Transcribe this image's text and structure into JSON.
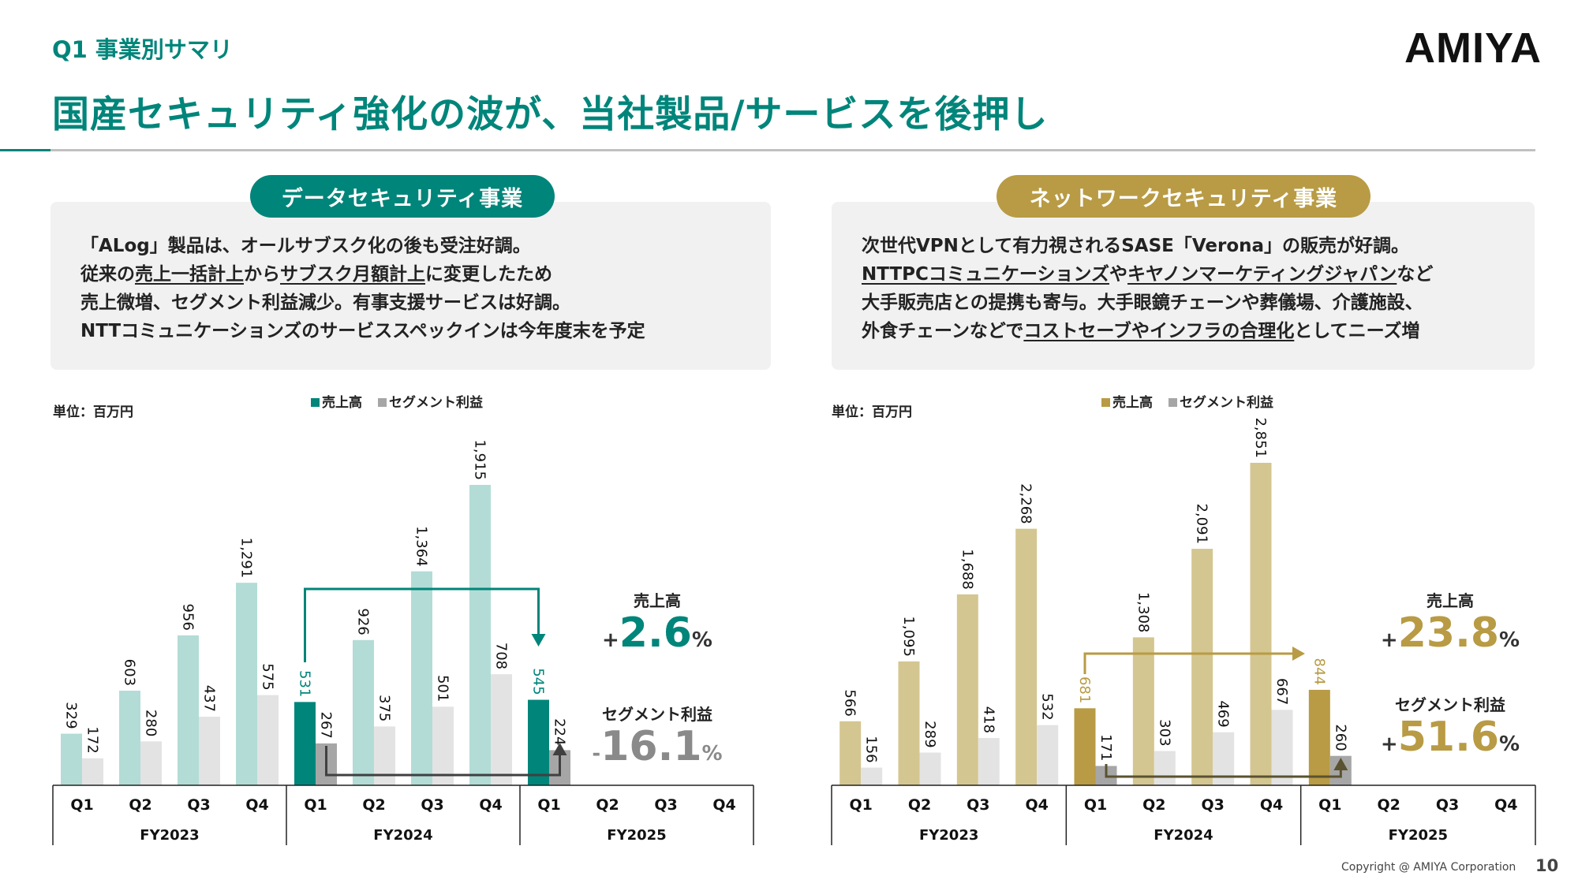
{
  "header": {
    "subtitle": "Q1 事業別サマリ",
    "title": "国産セキュリティ強化の波が、当社製品/サービスを後押し",
    "logo": "AMIYA"
  },
  "colors": {
    "teal": "#00857a",
    "teal_light": "#b3dcd6",
    "gold": "#b89b44",
    "gold_light": "#d4c690",
    "profit_light": "#e3e3e3",
    "profit_dark": "#a6a6a6",
    "profit_arrow_left": "#404040",
    "profit_arrow_right": "#5a5230"
  },
  "segments": [
    {
      "pill": "データセキュリティ事業",
      "lines": [
        [
          {
            "t": "「ALog」製品は、オールサブスク化の後も受注好調。",
            "u": false
          }
        ],
        [
          {
            "t": "従来の",
            "u": false
          },
          {
            "t": "売上一括計上",
            "u": true
          },
          {
            "t": "から",
            "u": false
          },
          {
            "t": "サブスク月額計上",
            "u": true
          },
          {
            "t": "に変更したため",
            "u": false
          }
        ],
        [
          {
            "t": "売上微増、セグメント利益減少。有事支援サービスは好調。",
            "u": false
          }
        ],
        [
          {
            "t": "NTTコミュニケーションズのサービススペックインは今年度末を予定",
            "u": false
          }
        ]
      ],
      "unit": "単位：百万円",
      "stats": {
        "sales_label": "売上高",
        "sales_sign": "+",
        "sales_value": "2.6",
        "sales_pct": "%",
        "profit_label": "セグメント利益",
        "profit_sign": "-",
        "profit_value": "16.1",
        "profit_pct": "%"
      }
    },
    {
      "pill": "ネットワークセキュリティ事業",
      "lines": [
        [
          {
            "t": "次世代VPNとして有力視されるSASE「Verona」の販売が好調。",
            "u": false
          }
        ],
        [
          {
            "t": "NTTPCコミュニケーションズ",
            "u": true
          },
          {
            "t": "や",
            "u": false
          },
          {
            "t": "キヤノンマーケティングジャパン",
            "u": true
          },
          {
            "t": "など",
            "u": false
          }
        ],
        [
          {
            "t": "大手販売店との提携も寄与。大手眼鏡チェーンや葬儀場、介護施設、",
            "u": false
          }
        ],
        [
          {
            "t": "外食チェーンなどで",
            "u": false
          },
          {
            "t": "コストセーブやインフラの合理化",
            "u": true
          },
          {
            "t": "としてニーズ増",
            "u": false
          }
        ]
      ],
      "unit": "単位：百万円",
      "stats": {
        "sales_label": "売上高",
        "sales_sign": "+",
        "sales_value": "23.8",
        "sales_pct": "%",
        "profit_label": "セグメント利益",
        "profit_sign": "+",
        "profit_value": "51.6",
        "profit_pct": "%"
      }
    }
  ],
  "chart_data": [
    {
      "type": "bar",
      "categories": [
        "Q1",
        "Q2",
        "Q3",
        "Q4",
        "Q1",
        "Q2",
        "Q3",
        "Q4",
        "Q1",
        "Q2",
        "Q3",
        "Q4"
      ],
      "groups": [
        "FY2023",
        "FY2024",
        "FY2025"
      ],
      "legend": [
        "売上高",
        "セグメント利益"
      ],
      "legend_position": "top",
      "series": [
        {
          "name": "売上高",
          "values": [
            329,
            603,
            956,
            1291,
            531,
            926,
            1364,
            1915,
            545,
            null,
            null,
            null
          ],
          "labels": [
            "329",
            "603",
            "956",
            "1,291",
            "531",
            "926",
            "1,364",
            "1,915",
            "545",
            "",
            "",
            ""
          ]
        },
        {
          "name": "セグメント利益",
          "values": [
            172,
            280,
            437,
            575,
            267,
            375,
            501,
            708,
            224,
            null,
            null,
            null
          ],
          "labels": [
            "172",
            "280",
            "437",
            "575",
            "267",
            "375",
            "501",
            "708",
            "224",
            "",
            "",
            ""
          ]
        }
      ],
      "highlight": [
        4,
        8
      ],
      "grid": false
    },
    {
      "type": "bar",
      "categories": [
        "Q1",
        "Q2",
        "Q3",
        "Q4",
        "Q1",
        "Q2",
        "Q3",
        "Q4",
        "Q1",
        "Q2",
        "Q3",
        "Q4"
      ],
      "groups": [
        "FY2023",
        "FY2024",
        "FY2025"
      ],
      "legend": [
        "売上高",
        "セグメント利益"
      ],
      "legend_position": "top",
      "series": [
        {
          "name": "売上高",
          "values": [
            566,
            1095,
            1688,
            2268,
            681,
            1308,
            2091,
            2851,
            844,
            null,
            null,
            null
          ],
          "labels": [
            "566",
            "1,095",
            "1,688",
            "2,268",
            "681",
            "1,308",
            "2,091",
            "2,851",
            "844",
            "",
            "",
            ""
          ]
        },
        {
          "name": "セグメント利益",
          "values": [
            156,
            289,
            418,
            532,
            171,
            303,
            469,
            667,
            260,
            null,
            null,
            null
          ],
          "labels": [
            "156",
            "289",
            "418",
            "532",
            "171",
            "303",
            "469",
            "667",
            "260",
            "",
            "",
            ""
          ]
        }
      ],
      "highlight": [
        4,
        8
      ],
      "grid": false
    }
  ],
  "footer": {
    "copyright": "Copyright @ AMIYA Corporation",
    "page": "10"
  }
}
